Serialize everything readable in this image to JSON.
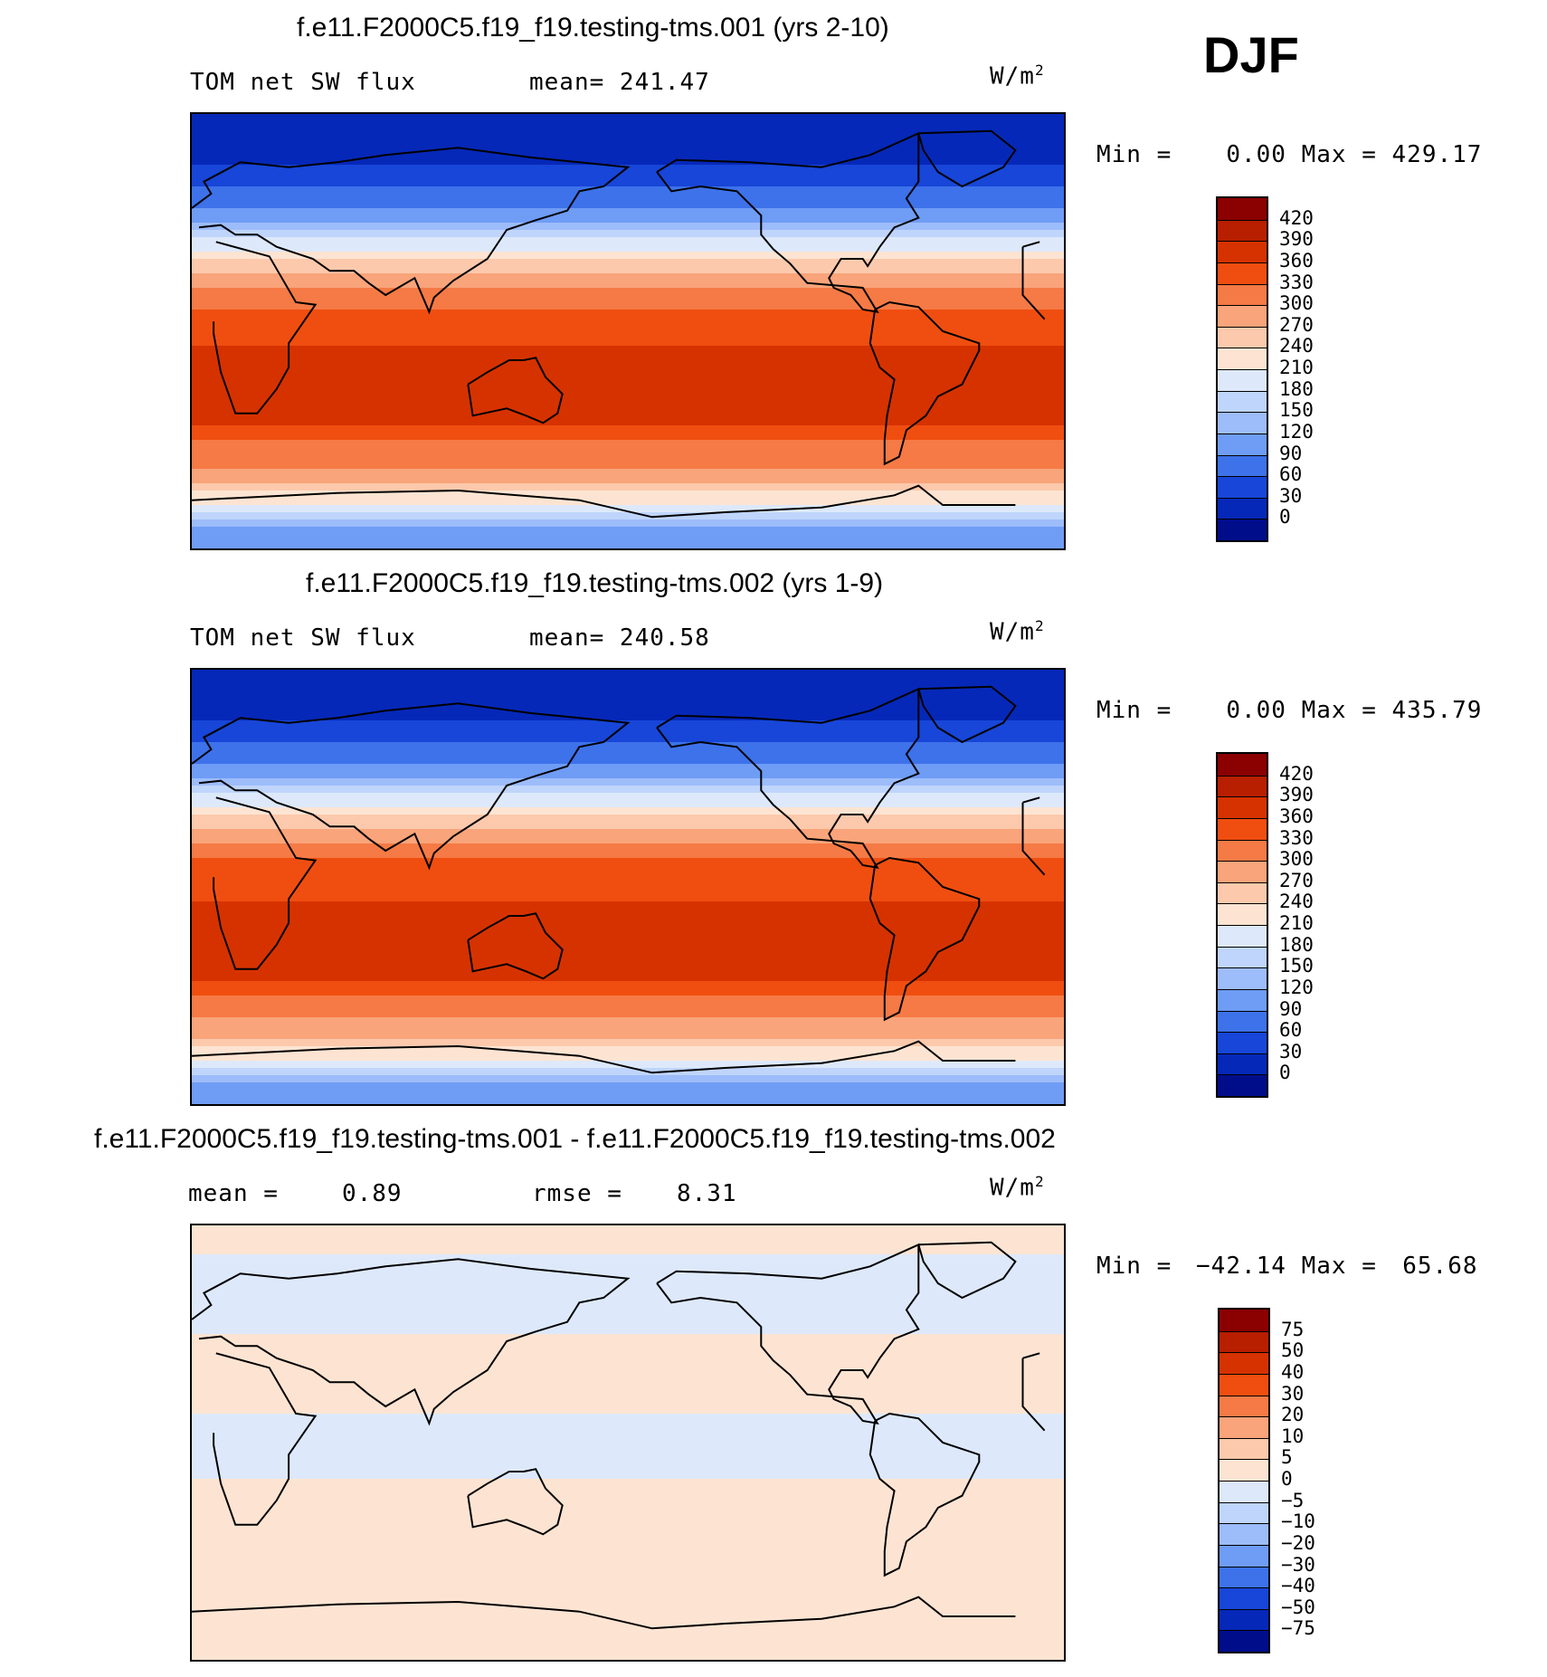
{
  "season": "DJF",
  "chart_data": [
    {
      "type": "heatmap",
      "title": "f.e11.F2000C5.f19_f19.testing-tms.001 (yrs 2-10)",
      "variable": "TOM net SW flux",
      "mean_label": "mean= 241.47",
      "units": "W/m",
      "units_exp": "2",
      "min_label": "Min =",
      "min_value": "0.00",
      "max_label": "Max =",
      "max_value": "429.17",
      "levels": [
        0,
        30,
        60,
        90,
        120,
        150,
        180,
        210,
        240,
        270,
        300,
        330,
        360,
        390,
        420
      ],
      "level_labels": [
        "420",
        "390",
        "360",
        "330",
        "300",
        "270",
        "240",
        "210",
        "180",
        "150",
        "120",
        "90",
        "60",
        "30",
        "0"
      ],
      "colors": [
        "#8b0000",
        "#b81e00",
        "#d63200",
        "#f04e10",
        "#f57a45",
        "#f9a47a",
        "#fcc9ac",
        "#fde4d2",
        "#dde9fb",
        "#bfd5fb",
        "#9dbcfa",
        "#6f9cf5",
        "#3d72ea",
        "#1746d8",
        "#0628b8",
        "#000d8a"
      ],
      "zonal_profile": [
        {
          "lat": 90,
          "value": 10
        },
        {
          "lat": 70,
          "value": 25
        },
        {
          "lat": 50,
          "value": 90
        },
        {
          "lat": 40,
          "value": 170
        },
        {
          "lat": 30,
          "value": 240
        },
        {
          "lat": 15,
          "value": 320
        },
        {
          "lat": 0,
          "value": 340
        },
        {
          "lat": -15,
          "value": 380
        },
        {
          "lat": -30,
          "value": 390
        },
        {
          "lat": -45,
          "value": 330
        },
        {
          "lat": -60,
          "value": 290
        },
        {
          "lat": -70,
          "value": 220
        },
        {
          "lat": -80,
          "value": 120
        },
        {
          "lat": -90,
          "value": 100
        }
      ]
    },
    {
      "type": "heatmap",
      "title": "f.e11.F2000C5.f19_f19.testing-tms.002 (yrs 1-9)",
      "variable": "TOM net SW flux",
      "mean_label": "mean= 240.58",
      "units": "W/m",
      "units_exp": "2",
      "min_label": "Min =",
      "min_value": "0.00",
      "max_label": "Max =",
      "max_value": "435.79",
      "levels": [
        0,
        30,
        60,
        90,
        120,
        150,
        180,
        210,
        240,
        270,
        300,
        330,
        360,
        390,
        420
      ],
      "level_labels": [
        "420",
        "390",
        "360",
        "330",
        "300",
        "270",
        "240",
        "210",
        "180",
        "150",
        "120",
        "90",
        "60",
        "30",
        "0"
      ],
      "colors": [
        "#8b0000",
        "#b81e00",
        "#d63200",
        "#f04e10",
        "#f57a45",
        "#f9a47a",
        "#fcc9ac",
        "#fde4d2",
        "#dde9fb",
        "#bfd5fb",
        "#9dbcfa",
        "#6f9cf5",
        "#3d72ea",
        "#1746d8",
        "#0628b8",
        "#000d8a"
      ],
      "zonal_profile": [
        {
          "lat": 90,
          "value": 10
        },
        {
          "lat": 70,
          "value": 25
        },
        {
          "lat": 50,
          "value": 90
        },
        {
          "lat": 40,
          "value": 165
        },
        {
          "lat": 30,
          "value": 240
        },
        {
          "lat": 15,
          "value": 325
        },
        {
          "lat": 0,
          "value": 345
        },
        {
          "lat": -15,
          "value": 385
        },
        {
          "lat": -30,
          "value": 390
        },
        {
          "lat": -45,
          "value": 330
        },
        {
          "lat": -60,
          "value": 285
        },
        {
          "lat": -70,
          "value": 215
        },
        {
          "lat": -80,
          "value": 120
        },
        {
          "lat": -90,
          "value": 100
        }
      ]
    },
    {
      "type": "heatmap",
      "title": "f.e11.F2000C5.f19_f19.testing-tms.001 - f.e11.F2000C5.f19_f19.testing-tms.002",
      "mean_label": "mean =",
      "mean_value": "0.89",
      "rmse_label": "rmse =",
      "rmse_value": "8.31",
      "units": "W/m",
      "units_exp": "2",
      "min_label": "Min =",
      "min_value": "−42.14",
      "max_label": "Max =",
      "max_value": "65.68",
      "levels": [
        -75,
        -50,
        -40,
        -30,
        -20,
        -10,
        -5,
        0,
        5,
        10,
        20,
        30,
        40,
        50,
        75
      ],
      "level_labels": [
        "75",
        "50",
        "40",
        "30",
        "20",
        "10",
        "5",
        "0",
        "−5",
        "−10",
        "−20",
        "−30",
        "−40",
        "−50",
        "−75"
      ],
      "colors": [
        "#8b0000",
        "#b81e00",
        "#d63200",
        "#f04e10",
        "#f57a45",
        "#f9a47a",
        "#fcc9ac",
        "#fde4d2",
        "#dde9fb",
        "#bfd5fb",
        "#9dbcfa",
        "#6f9cf5",
        "#3d72ea",
        "#1746d8",
        "#0628b8",
        "#000d8a"
      ],
      "zonal_profile": [
        {
          "lat": 90,
          "value": 2
        },
        {
          "lat": 60,
          "value": -3
        },
        {
          "lat": 30,
          "value": 3
        },
        {
          "lat": 0,
          "value": -2
        },
        {
          "lat": -30,
          "value": 2
        },
        {
          "lat": -60,
          "value": 1
        },
        {
          "lat": -90,
          "value": 2
        }
      ]
    }
  ]
}
